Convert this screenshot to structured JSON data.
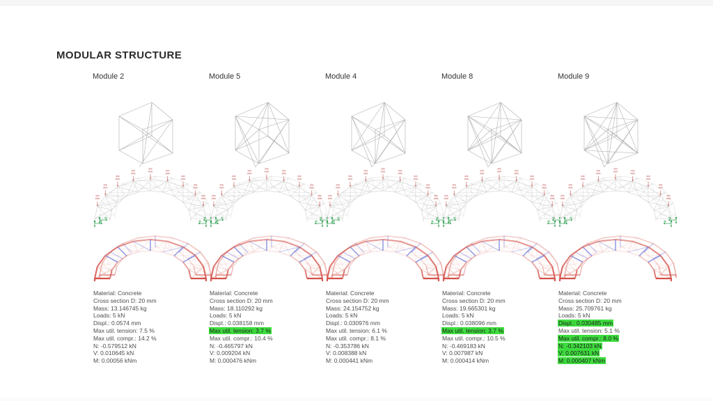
{
  "page": {
    "title": "MODULAR STRUCTURE"
  },
  "colors": {
    "highlight_green": "#3edd3e",
    "wireframe_gray": "#aeaeae",
    "truss_gray": "#c7c7c7",
    "truss_gray_back": "#dedede",
    "load_red": "#cc6a6a",
    "support_green": "#2f9e50",
    "stress_red": "#d24840",
    "stress_pale_red": "#e19a90",
    "stress_blue": "#6e78d7"
  },
  "modules": [
    {
      "label": "Module 2",
      "stats": [
        {
          "text": "Material: Concrete",
          "highlight": false
        },
        {
          "text": "Cross section D: 20 mm",
          "highlight": false
        },
        {
          "text": "Mass: 13.146745 kg",
          "highlight": false
        },
        {
          "text": "Loads: 5 kN",
          "highlight": false
        },
        {
          "text": "Displ.: 0.0574 mm",
          "highlight": false
        },
        {
          "text": "Max util. tension: 7.5 %",
          "highlight": false
        },
        {
          "text": "Max util. compr.: 14.2 %",
          "highlight": false
        },
        {
          "text": "N: -0.579512 kN",
          "highlight": false
        },
        {
          "text": "V: 0.010645 kN",
          "highlight": false
        },
        {
          "text": "M: 0.00056 kNm",
          "highlight": false
        }
      ]
    },
    {
      "label": "Module 5",
      "stats": [
        {
          "text": "Material: Concrete",
          "highlight": false
        },
        {
          "text": "Cross section D: 20 mm",
          "highlight": false
        },
        {
          "text": "Mass: 18.110292 kg",
          "highlight": false
        },
        {
          "text": "Loads: 5 kN",
          "highlight": false
        },
        {
          "text": "Displ.: 0.038158 mm",
          "highlight": false
        },
        {
          "text": "Max util. tension: 3.7 %",
          "highlight": true
        },
        {
          "text": "Max util. compr.: 10.4 %",
          "highlight": false
        },
        {
          "text": "N: -0.465797 kN",
          "highlight": false
        },
        {
          "text": "V: 0.009204 kN",
          "highlight": false
        },
        {
          "text": "M: 0.000476 kNm",
          "highlight": false
        }
      ]
    },
    {
      "label": "Module 4",
      "stats": [
        {
          "text": "Material: Concrete",
          "highlight": false
        },
        {
          "text": "Cross section D: 20 mm",
          "highlight": false
        },
        {
          "text": "Mass: 24.154752 kg",
          "highlight": false
        },
        {
          "text": "Loads: 5 kN",
          "highlight": false
        },
        {
          "text": "Displ.: 0.030976 mm",
          "highlight": false
        },
        {
          "text": "Max util. tension: 6.1 %",
          "highlight": false
        },
        {
          "text": "Max util. compr.: 8.1 %",
          "highlight": false
        },
        {
          "text": "N: -0.353786 kN",
          "highlight": false
        },
        {
          "text": "V: 0.008388 kN",
          "highlight": false
        },
        {
          "text": "M: 0.000441 kNm",
          "highlight": false
        }
      ]
    },
    {
      "label": "Module 8",
      "stats": [
        {
          "text": "Material: Concrete",
          "highlight": false
        },
        {
          "text": "Cross section D: 20 mm",
          "highlight": false
        },
        {
          "text": "Mass: 19.665301 kg",
          "highlight": false
        },
        {
          "text": "Loads: 5 kN",
          "highlight": false
        },
        {
          "text": "Displ.: 0.038096 mm",
          "highlight": false
        },
        {
          "text": "Max util. tension: 3.7 %",
          "highlight": true
        },
        {
          "text": "Max util. compr.: 10.5 %",
          "highlight": false
        },
        {
          "text": "N: -0.469183 kN",
          "highlight": false
        },
        {
          "text": "V: 0.007987 kN",
          "highlight": false
        },
        {
          "text": "M: 0.000414 kNm",
          "highlight": false
        }
      ]
    },
    {
      "label": "Module 9",
      "stats": [
        {
          "text": "Material: Concrete",
          "highlight": false
        },
        {
          "text": "Cross section D: 20 mm",
          "highlight": false
        },
        {
          "text": "Mass: 25.709761 kg",
          "highlight": false
        },
        {
          "text": "Loads: 5 kN",
          "highlight": false
        },
        {
          "text": "Displ.: 0.030485 mm",
          "highlight": true
        },
        {
          "text": "Max util. tension: 5.1 %",
          "highlight": false
        },
        {
          "text": "Max util. compr.: 8.0 %",
          "highlight": true
        },
        {
          "text": "N: -0.342103 kN",
          "highlight": true
        },
        {
          "text": "V: 0.007631 kN",
          "highlight": true
        },
        {
          "text": "M: 0.000407 kNm",
          "highlight": true
        }
      ]
    }
  ]
}
